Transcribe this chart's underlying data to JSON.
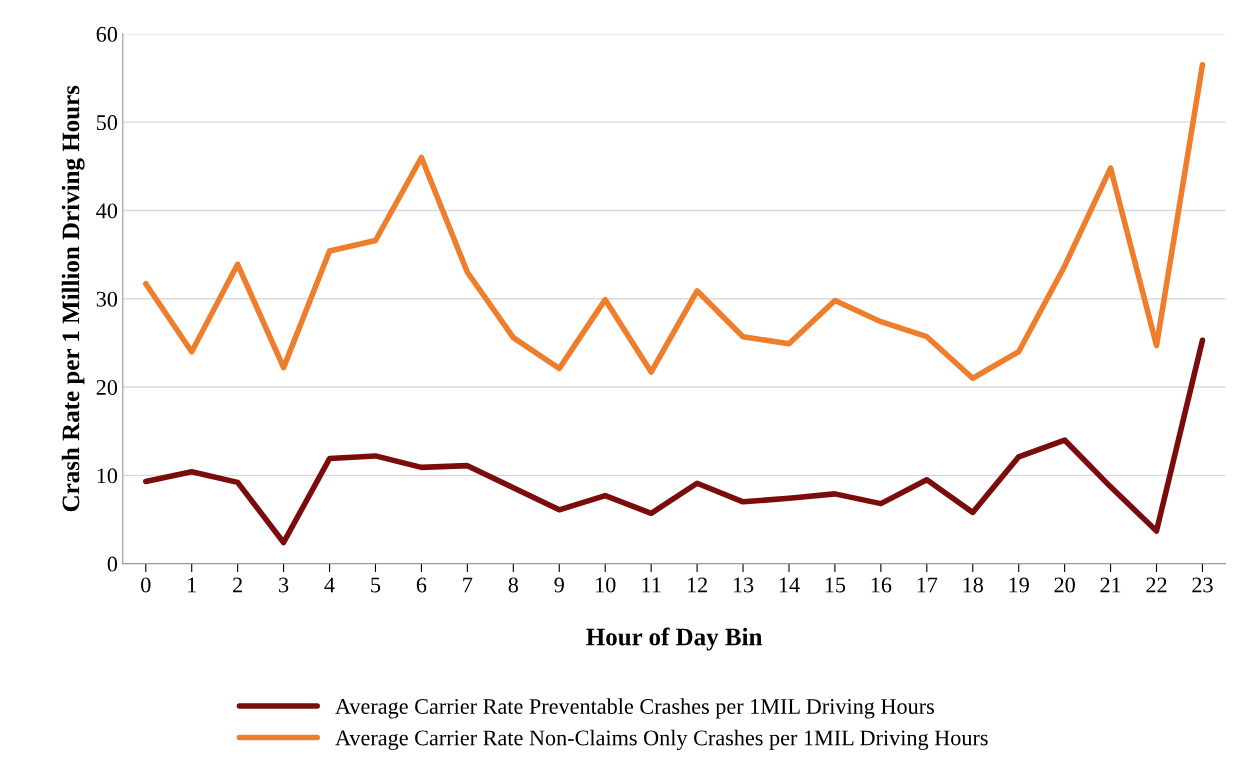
{
  "chart_data": {
    "type": "line",
    "xlabel": "Hour of Day Bin",
    "ylabel": "Crash Rate per 1 Million Driving Hours",
    "categories": [
      "0",
      "1",
      "2",
      "3",
      "4",
      "5",
      "6",
      "7",
      "8",
      "9",
      "10",
      "11",
      "12",
      "13",
      "14",
      "15",
      "16",
      "17",
      "18",
      "19",
      "20",
      "21",
      "22",
      "23"
    ],
    "series": [
      {
        "name": "Average Carrier Rate Preventable Crashes per 1MIL Driving Hours",
        "color": "#7b0c0c",
        "values": [
          9.3,
          10.4,
          9.2,
          2.4,
          11.9,
          12.2,
          10.9,
          11.1,
          8.6,
          6.1,
          7.7,
          5.7,
          9.1,
          7.0,
          7.4,
          7.9,
          6.8,
          9.5,
          5.8,
          12.1,
          14.0,
          8.7,
          3.7,
          25.3
        ]
      },
      {
        "name": "Average Carrier Rate Non-Claims Only Crashes per 1MIL Driving Hours",
        "color": "#ee7d2c",
        "values": [
          31.7,
          24.0,
          33.9,
          22.2,
          35.4,
          36.6,
          46.0,
          33.0,
          25.6,
          22.1,
          29.9,
          21.7,
          30.9,
          25.7,
          24.9,
          29.8,
          27.4,
          25.7,
          21.0,
          24.0,
          33.7,
          44.8,
          24.7,
          56.5
        ]
      }
    ],
    "ylim": [
      0,
      60
    ],
    "yticks": [
      0,
      10,
      20,
      30,
      40,
      50,
      60
    ],
    "grid": "y",
    "legend": "bottom",
    "marker": "none",
    "line_style": "solid"
  }
}
